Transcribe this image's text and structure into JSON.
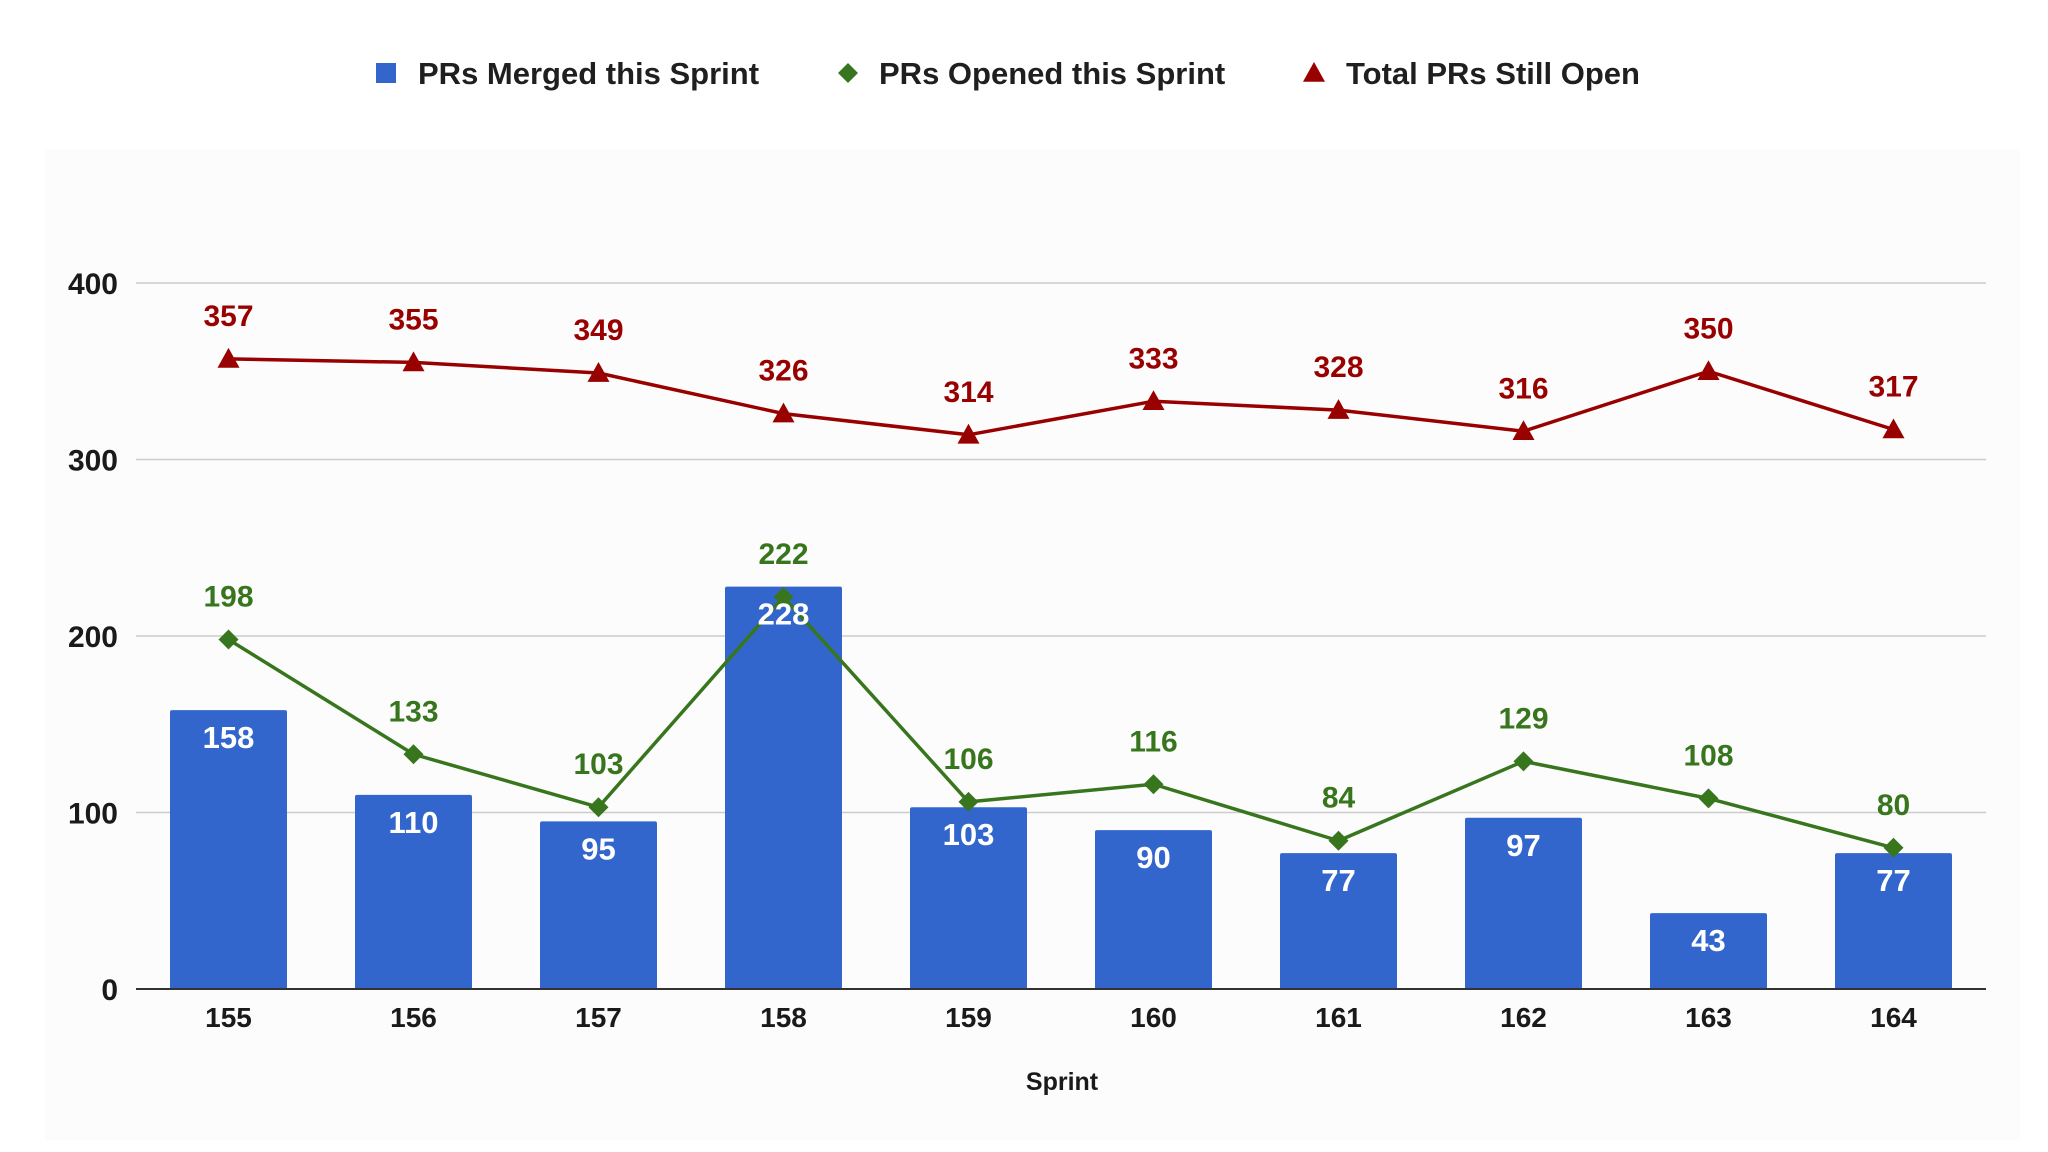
{
  "chart_data": {
    "type": "bar",
    "xlabel": "Sprint",
    "ylabel": "",
    "categories": [
      "155",
      "156",
      "157",
      "158",
      "159",
      "160",
      "161",
      "162",
      "163",
      "164"
    ],
    "ylim": [
      0,
      400
    ],
    "yticks": [
      "0",
      "100",
      "200",
      "300",
      "400"
    ],
    "grid": true,
    "legend_position": "top",
    "series": [
      {
        "name": "PRs Merged this Sprint",
        "type": "bar",
        "color": "#3366cc",
        "marker": "square",
        "values": [
          158,
          110,
          95,
          228,
          103,
          90,
          77,
          97,
          43,
          77
        ]
      },
      {
        "name": "PRs Opened this Sprint",
        "type": "line",
        "color": "#38761d",
        "marker": "diamond",
        "values": [
          198,
          133,
          103,
          222,
          106,
          116,
          84,
          129,
          108,
          80
        ]
      },
      {
        "name": "Total PRs Still Open",
        "type": "line",
        "color": "#990000",
        "marker": "triangle",
        "values": [
          357,
          355,
          349,
          326,
          314,
          333,
          328,
          316,
          350,
          317
        ]
      }
    ]
  }
}
